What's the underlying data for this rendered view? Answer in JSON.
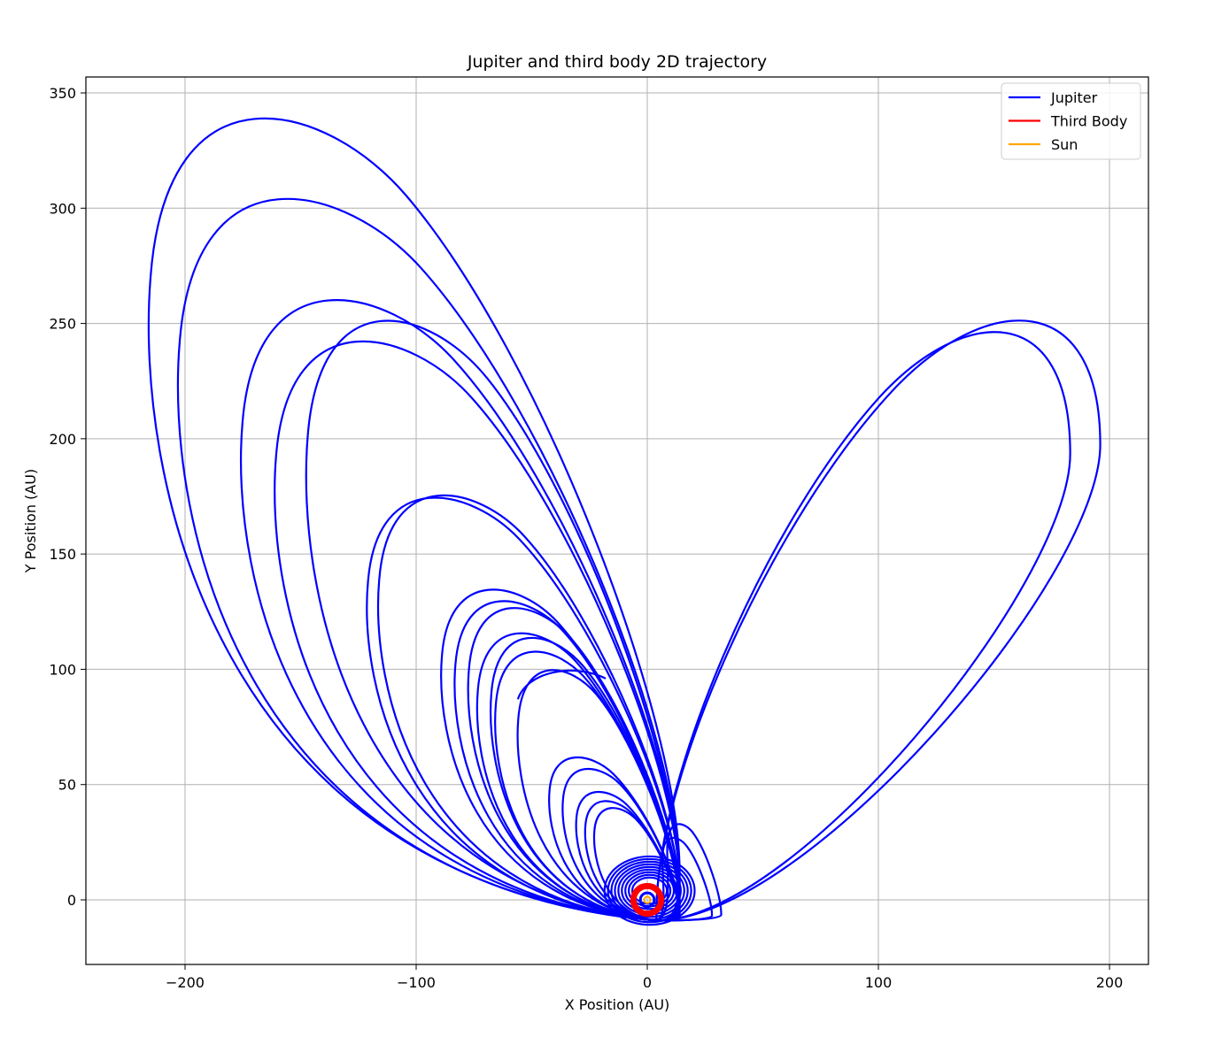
{
  "chart_data": {
    "type": "line",
    "title": "Jupiter and third body 2D trajectory",
    "xlabel": "X Position (AU)",
    "ylabel": "Y Position (AU)",
    "xlim": [
      -200,
      200
    ],
    "ylim": [
      0,
      350
    ],
    "xticks": [
      -200,
      -100,
      0,
      100,
      200
    ],
    "xtick_labels": [
      "−200",
      "−100",
      "0",
      "100",
      "200"
    ],
    "yticks": [
      0,
      50,
      100,
      150,
      200,
      250,
      300,
      350
    ],
    "ytick_labels": [
      "0",
      "50",
      "100",
      "150",
      "200",
      "250",
      "300",
      "350"
    ],
    "grid": true,
    "legend_position": "top-right",
    "series": [
      {
        "name": "Jupiter",
        "color": "#0000ff",
        "description": "chaotic looping trajectory",
        "loops": [
          {
            "xmin": -222,
            "xmax": 14,
            "ymax": 340
          },
          {
            "xmin": -209,
            "xmax": 14,
            "ymax": 305
          },
          {
            "xmin": -181,
            "xmax": 14,
            "ymax": 261
          },
          {
            "xmin": -166,
            "xmax": 14,
            "ymax": 243
          },
          {
            "xmin": -152,
            "xmax": 14,
            "ymax": 252
          },
          {
            "xmin": 0,
            "xmax": 196,
            "ymax": 253
          },
          {
            "xmin": 0,
            "xmax": 183,
            "ymax": 248
          },
          {
            "xmin": -125,
            "xmax": 14,
            "ymax": 175
          },
          {
            "xmin": -120,
            "xmax": 14,
            "ymax": 176
          },
          {
            "xmin": -92,
            "xmax": 14,
            "ymax": 135
          },
          {
            "xmin": -86,
            "xmax": 14,
            "ymax": 130
          },
          {
            "xmin": -80,
            "xmax": 14,
            "ymax": 127
          },
          {
            "xmin": -76,
            "xmax": 14,
            "ymax": 116
          },
          {
            "xmin": -70,
            "xmax": 14,
            "ymax": 114
          },
          {
            "xmin": -68,
            "xmax": 14,
            "ymax": 108
          },
          {
            "xmin": -58,
            "xmax": 14,
            "ymax": 100
          },
          {
            "xmin": -44,
            "xmax": 14,
            "ymax": 62
          },
          {
            "xmin": -38,
            "xmax": 14,
            "ymax": 57
          },
          {
            "xmin": -32,
            "xmax": 14,
            "ymax": 47
          },
          {
            "xmin": -28,
            "xmax": 14,
            "ymax": 43
          },
          {
            "xmin": -24,
            "xmax": 14,
            "ymax": 40
          },
          {
            "xmin": 8,
            "xmax": 32,
            "ymax": 33
          },
          {
            "xmin": 6,
            "xmax": 28,
            "ymax": 27
          }
        ],
        "end_point": [
          -56,
          87
        ]
      },
      {
        "name": "Third Body",
        "color": "#ff0000",
        "description": "near-circular orbit near origin",
        "radius": 6
      },
      {
        "name": "Sun",
        "color": "#ffa500",
        "description": "near origin",
        "radius": 1
      }
    ]
  }
}
